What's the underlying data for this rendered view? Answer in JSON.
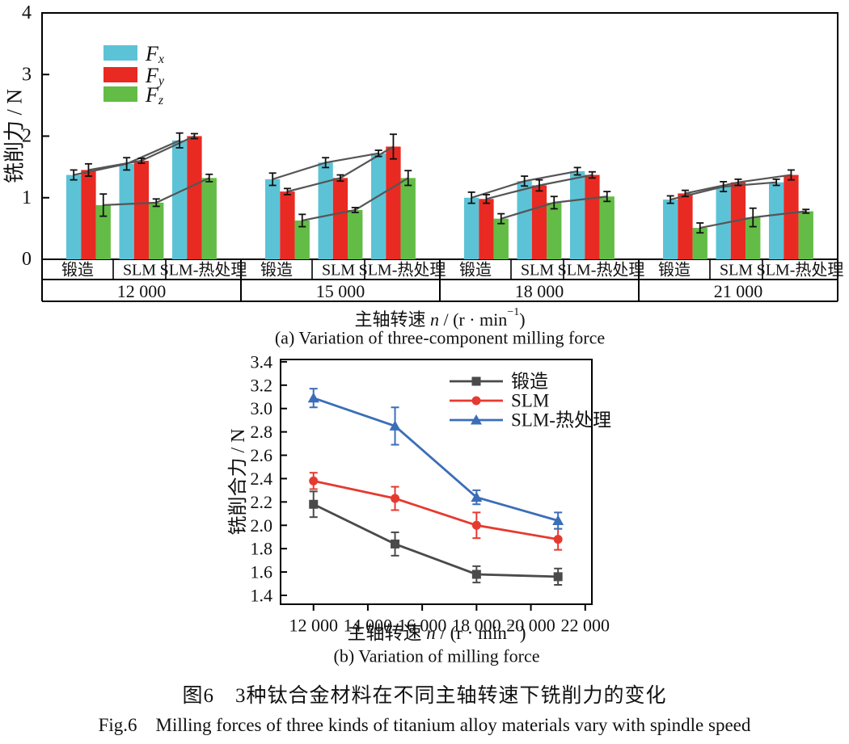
{
  "figure": {
    "caption_zh": "图6　3种钛合金材料在不同主轴转速下铣削力的变化",
    "caption_en": "Fig.6　Milling forces of three kinds of titanium alloy materials vary with spindle speed"
  },
  "chart_data": [
    {
      "type": "bar",
      "subcaption": "(a) Variation of three-component milling force",
      "ylabel": "铣削力 / N",
      "xlabel": {
        "prefix": "主轴转速 ",
        "var": "n",
        "unit_pre": " / (r · min",
        "sup": "−1",
        "unit_post": ")"
      },
      "ylim": [
        0,
        4
      ],
      "yticks": [
        0,
        1,
        2,
        3,
        4
      ],
      "speeds": [
        "12 000",
        "15 000",
        "18 000",
        "21 000"
      ],
      "materials": [
        "锻造",
        "SLM",
        "SLM-热处理"
      ],
      "grid": false,
      "legend_position": "top-left-inside",
      "connector_color": "#555555",
      "error_bar_color": "#111111",
      "series": [
        {
          "name": "Fx",
          "label_main": "F",
          "label_sub": "x",
          "color": "#5cc3d6",
          "values": [
            [
              1.37,
              1.55,
              1.93
            ],
            [
              1.3,
              1.57,
              1.72
            ],
            [
              1.0,
              1.27,
              1.43
            ],
            [
              0.97,
              1.18,
              1.25
            ]
          ],
          "errors": [
            [
              0.08,
              0.1,
              0.12
            ],
            [
              0.1,
              0.08,
              0.05
            ],
            [
              0.09,
              0.08,
              0.06
            ],
            [
              0.06,
              0.08,
              0.05
            ]
          ]
        },
        {
          "name": "Fy",
          "label_main": "F",
          "label_sub": "y",
          "color": "#e92a22",
          "values": [
            [
              1.45,
              1.6,
              2.0
            ],
            [
              1.1,
              1.32,
              1.83
            ],
            [
              0.98,
              1.2,
              1.37
            ],
            [
              1.07,
              1.25,
              1.37
            ]
          ],
          "errors": [
            [
              0.1,
              0.04,
              0.04
            ],
            [
              0.05,
              0.05,
              0.2
            ],
            [
              0.07,
              0.09,
              0.05
            ],
            [
              0.05,
              0.05,
              0.08
            ]
          ]
        },
        {
          "name": "Fz",
          "label_main": "F",
          "label_sub": "z",
          "color": "#63bc46",
          "values": [
            [
              0.88,
              0.92,
              1.32
            ],
            [
              0.63,
              0.8,
              1.32
            ],
            [
              0.66,
              0.92,
              1.02
            ],
            [
              0.51,
              0.68,
              0.78
            ]
          ],
          "errors": [
            [
              0.18,
              0.06,
              0.06
            ],
            [
              0.1,
              0.04,
              0.12
            ],
            [
              0.08,
              0.1,
              0.08
            ],
            [
              0.08,
              0.15,
              0.03
            ]
          ]
        }
      ]
    },
    {
      "type": "line",
      "subcaption": "(b) Variation of milling force",
      "ylabel": "铣削合力 / N",
      "xlabel": {
        "prefix": "主轴转速 ",
        "var": "n",
        "unit_pre": " / (r · min",
        "sup": "−1",
        "unit_post": ")"
      },
      "x": [
        12000,
        15000,
        18000,
        21000
      ],
      "xlim": [
        10788,
        22245
      ],
      "xticks": [
        12000,
        14000,
        16000,
        18000,
        20000,
        22000
      ],
      "xtick_labels": [
        "12 000",
        "14 000",
        "16 000",
        "18 000",
        "20 000",
        "22 000"
      ],
      "ylim": [
        1.324,
        3.42
      ],
      "yticks": [
        1.4,
        1.6,
        1.8,
        2.0,
        2.2,
        2.4,
        2.6,
        2.8,
        3.0,
        3.2,
        3.4
      ],
      "ytick_labels": [
        "1.4",
        "1.6",
        "1.8",
        "2.0",
        "2.2",
        "2.4",
        "2.6",
        "2.8",
        "3.0",
        "3.2",
        "3.4"
      ],
      "grid": false,
      "legend_position": "top-right-inside",
      "series": [
        {
          "name": "锻造",
          "color": "#4a4a4a",
          "marker": "square",
          "values": [
            2.18,
            1.84,
            1.58,
            1.56
          ],
          "errors": [
            0.11,
            0.1,
            0.07,
            0.07
          ]
        },
        {
          "name": "SLM",
          "color": "#e53a30",
          "marker": "circle",
          "values": [
            2.38,
            2.23,
            2.0,
            1.88
          ],
          "errors": [
            0.07,
            0.1,
            0.11,
            0.09
          ]
        },
        {
          "name": "SLM-热处理",
          "color": "#3b6eb8",
          "marker": "triangle",
          "values": [
            3.09,
            2.85,
            2.24,
            2.04
          ],
          "errors": [
            0.08,
            0.16,
            0.06,
            0.07
          ]
        }
      ]
    }
  ]
}
